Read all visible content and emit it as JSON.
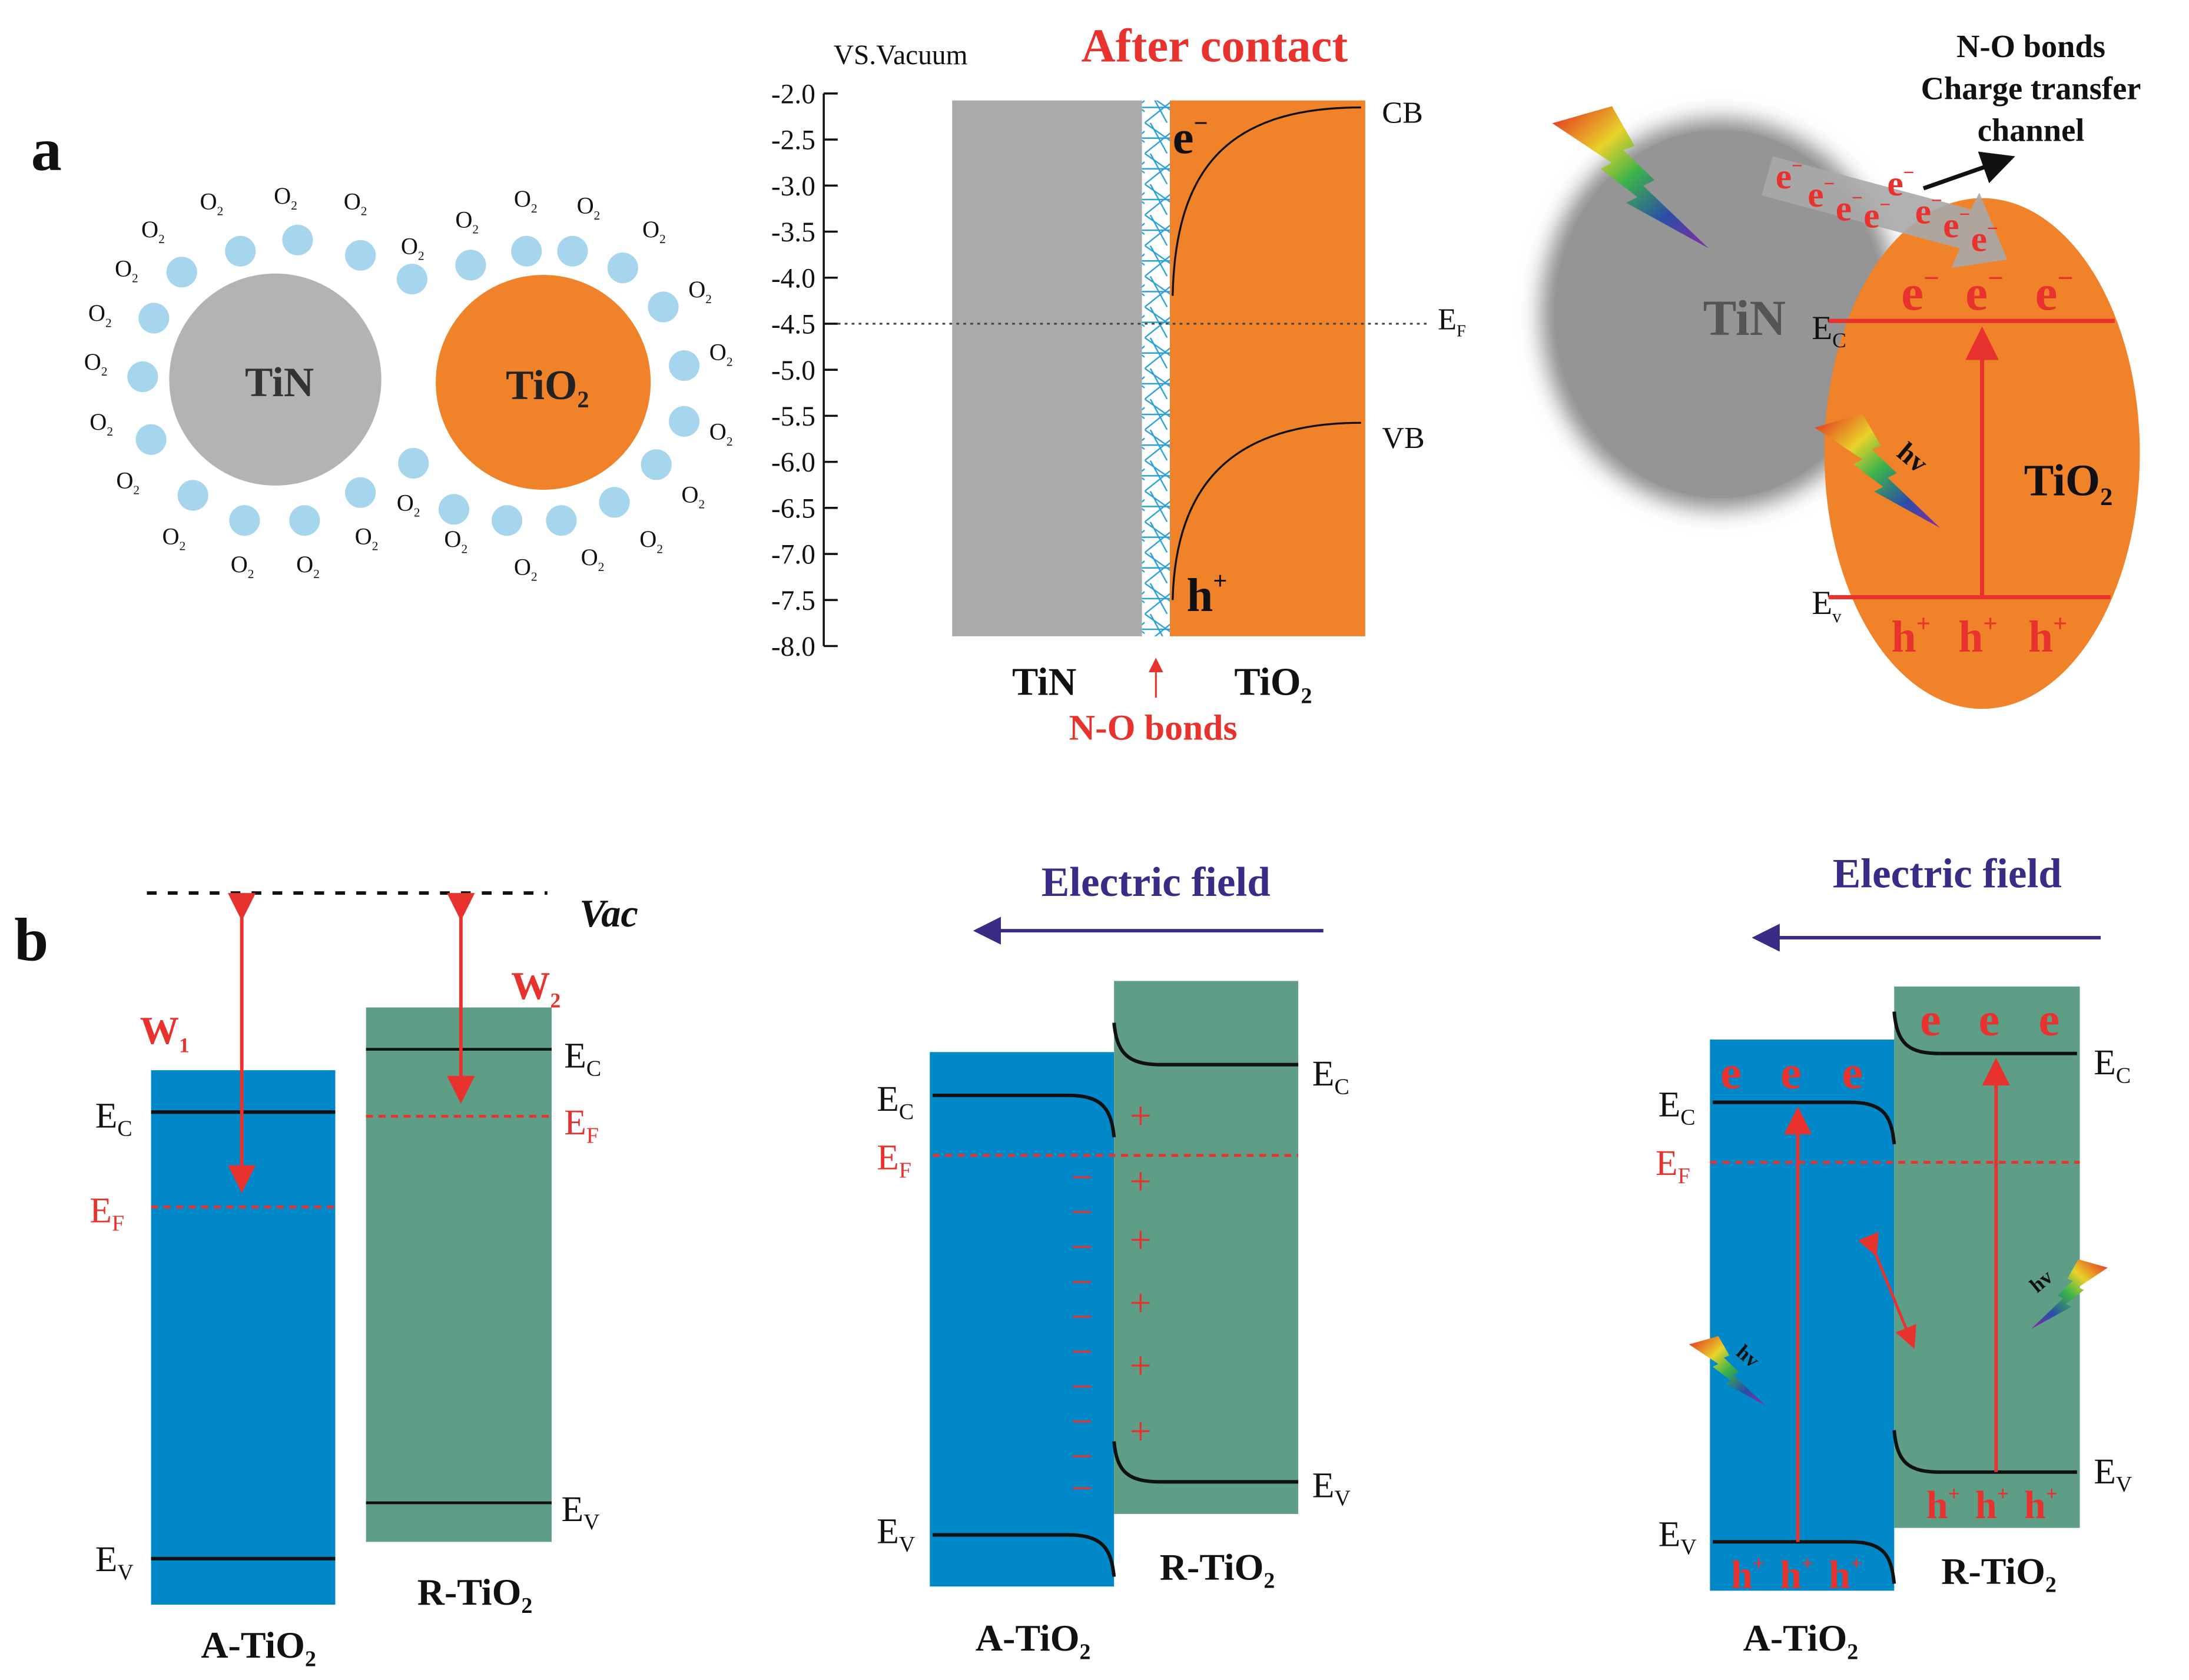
{
  "panel_labels": {
    "a": "a",
    "b": "b"
  },
  "colors": {
    "tin_gray": "#b3b3b3",
    "tio2_orange": "#f0822a",
    "o2_dot": "#a6d5ee",
    "anatase_blue": "#0088c8",
    "rutile_green": "#5e9e86",
    "red": "#e8322e",
    "field_purple": "#3b2a86"
  },
  "panel_a_left": {
    "tin_label": "TiN",
    "tio2_label": {
      "main": "TiO",
      "sub": "2"
    },
    "o2_label": {
      "main": "O",
      "sub": "2"
    }
  },
  "panel_a_middle": {
    "axis_title": "VS.Vacuum",
    "title": "After contact",
    "y_ticks": [
      "-2.0",
      "-2.5",
      "-3.0",
      "-3.5",
      "-4.0",
      "-4.5",
      "-5.0",
      "-5.5",
      "-6.0",
      "-6.5",
      "-7.0",
      "-7.5",
      "-8.0"
    ],
    "y_range": [
      -2.0,
      -8.0
    ],
    "fermi_level_value": -4.5,
    "cb_label": "CB",
    "vb_label": "VB",
    "ef_label": {
      "main": "E",
      "sub": "F"
    },
    "electron_label": {
      "main": "e",
      "sup": "−"
    },
    "hole_label": {
      "main": "h",
      "sup": "+"
    },
    "tin_label": "TiN",
    "tio2_label": {
      "main": "TiO",
      "sub": "2"
    },
    "interface_label": "N-O bonds"
  },
  "panel_a_right": {
    "callout_lines": [
      "N-O bonds",
      "Charge transfer",
      "channel"
    ],
    "tin_label": "TiN",
    "tio2_label": {
      "main": "TiO",
      "sub": "2"
    },
    "ec_label": {
      "main": "E",
      "sub": "C"
    },
    "ev_label": {
      "main": "E",
      "sub": "v"
    },
    "hv_label": "hv",
    "electron": {
      "main": "e",
      "sup": "−"
    },
    "hole": {
      "main": "h",
      "sup": "+"
    }
  },
  "panel_b_left": {
    "vac_label": "Vac",
    "w1_label": {
      "main": "W",
      "sub": "1"
    },
    "w2_label": {
      "main": "W",
      "sub": "2"
    },
    "ec_label": {
      "main": "E",
      "sub": "C"
    },
    "ef_label": {
      "main": "E",
      "sub": "F"
    },
    "ev_label": {
      "main": "E",
      "sub": "V"
    },
    "anatase_label": {
      "main": "A-TiO",
      "sub": "2"
    },
    "rutile_label": {
      "main": "R-TiO",
      "sub": "2"
    }
  },
  "panel_b_middle": {
    "field_label": "Electric field",
    "ec_label": {
      "main": "E",
      "sub": "C"
    },
    "ef_label": {
      "main": "E",
      "sub": "F"
    },
    "ev_label": {
      "main": "E",
      "sub": "V"
    },
    "minus_sign": "−",
    "plus_sign": "+",
    "anatase_label": {
      "main": "A-TiO",
      "sub": "2"
    },
    "rutile_label": {
      "main": "R-TiO",
      "sub": "2"
    }
  },
  "panel_b_right": {
    "field_label": "Electric field",
    "ec_label": {
      "main": "E",
      "sub": "C"
    },
    "ef_label": {
      "main": "E",
      "sub": "F"
    },
    "ev_label": {
      "main": "E",
      "sub": "V"
    },
    "hv_label": "hv",
    "electron": "e",
    "hole": {
      "main": "h",
      "sup": "+"
    },
    "anatase_label": {
      "main": "A-TiO",
      "sub": "2"
    },
    "rutile_label": {
      "main": "R-TiO",
      "sub": "2"
    }
  }
}
